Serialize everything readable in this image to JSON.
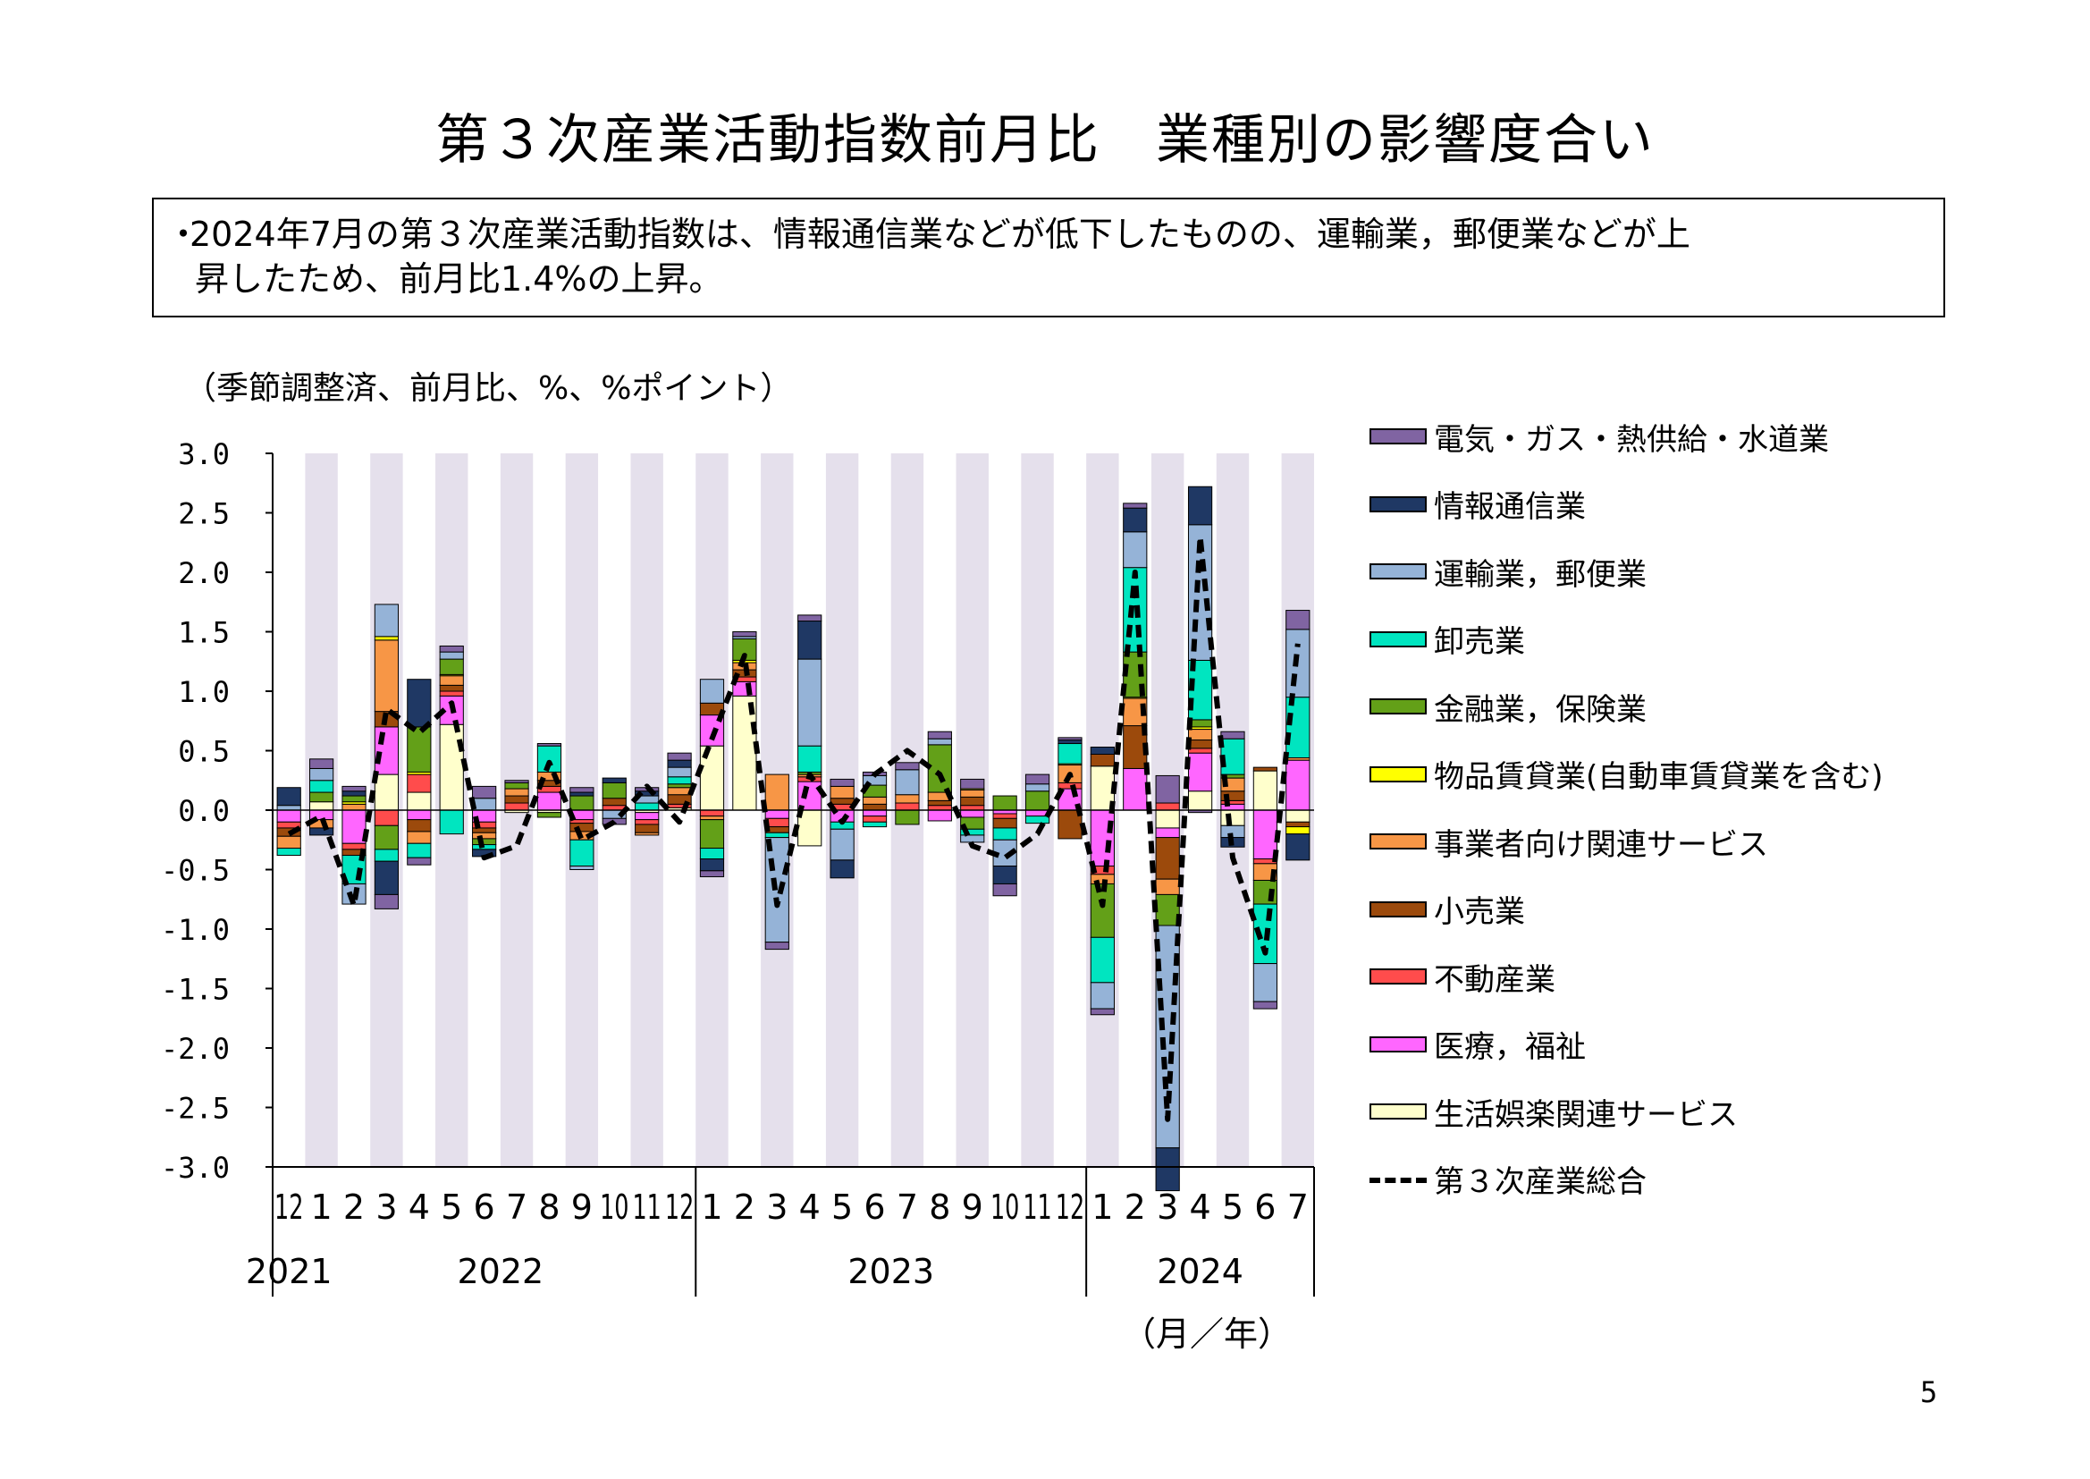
{
  "title": "第３次産業活動指数前月比　業種別の影響度合い",
  "summary": {
    "bullet": "・",
    "line1": "2024年7月の第３次産業活動指数は、情報通信業などが低下したものの、運輸業，郵便業などが上",
    "line2": "昇したため、前月比1.4%の上昇。"
  },
  "unit_label": "（季節調整済、前月比、%、%ポイント）",
  "page_number": "5",
  "chart_data": {
    "type": "bar",
    "subtype": "stacked bar with line",
    "ylim": [
      -3.0,
      3.0
    ],
    "yticks": [
      "3.0",
      "2.5",
      "2.0",
      "1.5",
      "1.0",
      "0.5",
      "0.0",
      "-0.5",
      "-1.0",
      "-1.5",
      "-2.0",
      "-2.5",
      "-3.0"
    ],
    "xlabel_unit": "（月／年）",
    "categories": [
      "12",
      "1",
      "2",
      "3",
      "4",
      "5",
      "6",
      "7",
      "8",
      "9",
      "10",
      "11",
      "12",
      "1",
      "2",
      "3",
      "4",
      "5",
      "6",
      "7",
      "8",
      "9",
      "10",
      "11",
      "12",
      "1",
      "2",
      "3",
      "4",
      "5",
      "6",
      "7"
    ],
    "year_labels": [
      {
        "label": "2021",
        "start": 0,
        "end": 0
      },
      {
        "label": "2022",
        "start": 1,
        "end": 12
      },
      {
        "label": "2023",
        "start": 13,
        "end": 24
      },
      {
        "label": "2024",
        "start": 25,
        "end": 31
      }
    ],
    "shaded_months": [
      1,
      3,
      5,
      7,
      9,
      11,
      13,
      15,
      17,
      19,
      21,
      23,
      25,
      27,
      29,
      31
    ],
    "stack_order": [
      "生活娯楽関連サービス",
      "医療，福祉",
      "不動産業",
      "小売業",
      "事業者向け関連サービス",
      "物品賃貸業(自動車賃貸業を含む)",
      "金融業，保険業",
      "卸売業",
      "運輸業，郵便業",
      "情報通信業",
      "電気・ガス・熱供給・水道業"
    ],
    "series": [
      {
        "name": "電気・ガス・熱供給・水道業",
        "color": "#8064a2",
        "values": [
          0.0,
          0.08,
          0.04,
          -0.12,
          -0.06,
          0.05,
          0.1,
          0.02,
          0.02,
          0.04,
          -0.05,
          0.03,
          0.06,
          -0.05,
          0.04,
          -0.06,
          0.05,
          0.06,
          0.03,
          0.06,
          0.06,
          0.08,
          -0.1,
          0.08,
          0.02,
          -0.05,
          0.04,
          0.23,
          -0.02,
          0.06,
          -0.06,
          0.16
        ]
      },
      {
        "name": "情報通信業",
        "color": "#1f3864",
        "values": [
          0.15,
          -0.06,
          0.04,
          -0.28,
          0.4,
          0.0,
          -0.06,
          0.0,
          0.0,
          0.03,
          0.04,
          0.04,
          0.06,
          -0.1,
          0.0,
          0.0,
          0.32,
          -0.15,
          0.0,
          0.0,
          0.0,
          0.0,
          -0.15,
          0.0,
          0.03,
          0.06,
          0.2,
          -0.36,
          0.32,
          -0.08,
          0.0,
          -0.22
        ]
      },
      {
        "name": "運輸業，郵便業",
        "color": "#95b3d7",
        "values": [
          0.04,
          0.1,
          -0.17,
          0.27,
          0.0,
          0.06,
          0.1,
          0.0,
          0.0,
          -0.03,
          -0.07,
          0.06,
          0.08,
          0.2,
          0.02,
          -0.88,
          0.73,
          -0.26,
          0.08,
          0.21,
          0.05,
          -0.06,
          -0.22,
          0.06,
          0.0,
          -0.22,
          0.3,
          -1.87,
          1.14,
          -0.1,
          -0.32,
          0.57
        ]
      },
      {
        "name": "卸売業",
        "color": "#00e5c0",
        "values": [
          -0.06,
          0.1,
          -0.24,
          -0.1,
          -0.12,
          -0.2,
          -0.04,
          0.0,
          0.22,
          -0.22,
          0.0,
          0.06,
          0.06,
          -0.09,
          0.0,
          -0.04,
          0.22,
          -0.06,
          -0.04,
          0.0,
          0.0,
          -0.05,
          -0.1,
          -0.06,
          0.17,
          -0.38,
          0.71,
          0.0,
          0.5,
          0.3,
          -0.5,
          0.51
        ]
      },
      {
        "name": "金融業，保険業",
        "color": "#63a018",
        "values": [
          0.0,
          0.08,
          0.05,
          -0.2,
          0.38,
          0.13,
          -0.05,
          0.05,
          -0.04,
          0.12,
          0.13,
          0.0,
          0.03,
          -0.24,
          0.18,
          0.0,
          0.02,
          0.0,
          0.1,
          -0.12,
          0.4,
          -0.1,
          0.12,
          0.16,
          0.0,
          -0.45,
          0.38,
          -0.26,
          0.06,
          0.03,
          -0.2,
          0.0
        ]
      },
      {
        "name": "物品賃貸業(自動車賃貸業を含む)",
        "color": "#ffff00",
        "values": [
          0.0,
          0.0,
          0.02,
          0.03,
          0.02,
          0.01,
          0.0,
          0.0,
          0.0,
          0.0,
          0.0,
          0.0,
          0.0,
          0.0,
          0.02,
          0.0,
          0.0,
          0.0,
          0.0,
          0.0,
          0.0,
          0.01,
          0.0,
          0.0,
          0.01,
          0.0,
          0.01,
          0.0,
          0.02,
          0.0,
          0.0,
          -0.06
        ]
      },
      {
        "name": "事業者向け関連サービス",
        "color": "#f79646",
        "values": [
          -0.1,
          -0.07,
          0.05,
          0.6,
          -0.1,
          0.08,
          -0.05,
          0.06,
          0.07,
          -0.07,
          0.0,
          -0.02,
          0.06,
          -0.03,
          0.06,
          0.3,
          0.02,
          0.1,
          0.06,
          0.07,
          0.07,
          0.06,
          0.0,
          0.0,
          0.15,
          -0.08,
          0.23,
          -0.13,
          0.09,
          0.11,
          -0.14,
          0.02
        ]
      },
      {
        "name": "小売業",
        "color": "#9c4a0c",
        "values": [
          -0.07,
          0.0,
          -0.05,
          0.13,
          -0.1,
          0.05,
          -0.04,
          0.06,
          0.05,
          -0.07,
          0.06,
          -0.07,
          0.08,
          0.1,
          0.06,
          -0.05,
          0.0,
          0.05,
          0.05,
          0.0,
          0.04,
          0.07,
          -0.08,
          0.0,
          -0.24,
          0.1,
          0.36,
          -0.35,
          0.07,
          0.08,
          0.03,
          -0.04
        ]
      },
      {
        "name": "不動産業",
        "color": "#ff4c4c",
        "values": [
          -0.05,
          0.0,
          -0.05,
          -0.13,
          0.15,
          0.04,
          -0.05,
          0.06,
          0.05,
          -0.03,
          0.04,
          -0.04,
          0.03,
          -0.05,
          0.04,
          -0.07,
          0.04,
          0.05,
          -0.05,
          0.06,
          0.04,
          0.04,
          -0.04,
          0.0,
          0.05,
          -0.07,
          0.0,
          0.06,
          0.04,
          0.03,
          -0.04,
          0.0
        ]
      },
      {
        "name": "医療，福祉",
        "color": "#ff66ff",
        "values": [
          -0.1,
          -0.08,
          -0.28,
          0.4,
          -0.08,
          0.24,
          -0.1,
          0.0,
          0.15,
          -0.08,
          0.0,
          -0.06,
          0.0,
          0.26,
          0.12,
          -0.07,
          0.24,
          -0.1,
          -0.05,
          0.0,
          -0.09,
          -0.06,
          -0.03,
          -0.05,
          0.18,
          -0.47,
          0.35,
          -0.08,
          0.32,
          0.05,
          -0.41,
          0.42
        ]
      },
      {
        "name": "生活娯楽関連サービス",
        "color": "#ffffcc",
        "values": [
          0.0,
          0.07,
          0.0,
          0.3,
          0.15,
          0.72,
          0.0,
          -0.02,
          -0.02,
          0.0,
          0.0,
          -0.02,
          0.02,
          0.54,
          0.96,
          0.0,
          -0.3,
          0.0,
          0.0,
          0.0,
          0.0,
          0.0,
          0.0,
          0.0,
          0.0,
          0.37,
          0.0,
          -0.15,
          0.16,
          -0.13,
          0.33,
          -0.1
        ]
      }
    ],
    "line": {
      "name": "第３次産業総合",
      "color": "#000000",
      "values": [
        -0.2,
        -0.05,
        -0.8,
        0.85,
        0.65,
        0.9,
        -0.4,
        -0.3,
        0.4,
        -0.25,
        -0.1,
        0.2,
        -0.1,
        0.6,
        1.3,
        -0.8,
        0.3,
        -0.1,
        0.3,
        0.5,
        0.3,
        -0.3,
        -0.4,
        -0.2,
        0.3,
        -0.8,
        2.0,
        -2.6,
        2.3,
        -0.4,
        -1.2,
        1.4
      ]
    }
  }
}
